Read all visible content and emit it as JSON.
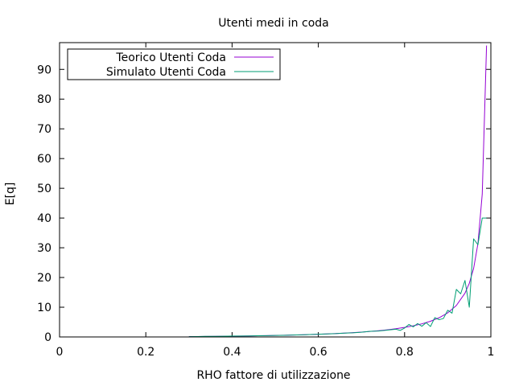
{
  "chart_data": {
    "type": "line",
    "title": "Utenti medi in coda",
    "xlabel": "RHO fattore di utilizzazione",
    "ylabel": "E[q]",
    "xlim": [
      0,
      1
    ],
    "ylim": [
      0,
      99
    ],
    "xticks": [
      0,
      0.2,
      0.4,
      0.6,
      0.8,
      1
    ],
    "yticks": [
      0,
      10,
      20,
      30,
      40,
      50,
      60,
      70,
      80,
      90
    ],
    "legend_position": "top-left",
    "grid": false,
    "series": [
      {
        "name": "Teorico Utenti Coda",
        "color": "#9400d3",
        "x": [
          0.3,
          0.32,
          0.34,
          0.36,
          0.38,
          0.4,
          0.42,
          0.44,
          0.46,
          0.48,
          0.5,
          0.52,
          0.54,
          0.56,
          0.58,
          0.6,
          0.62,
          0.64,
          0.66,
          0.68,
          0.7,
          0.72,
          0.74,
          0.76,
          0.78,
          0.8,
          0.82,
          0.84,
          0.86,
          0.88,
          0.9,
          0.92,
          0.94,
          0.95,
          0.96,
          0.97,
          0.98,
          0.99
        ],
        "y": [
          0.13,
          0.15,
          0.18,
          0.2,
          0.23,
          0.27,
          0.3,
          0.35,
          0.39,
          0.44,
          0.5,
          0.56,
          0.63,
          0.71,
          0.8,
          0.9,
          1.01,
          1.14,
          1.28,
          1.45,
          1.63,
          1.85,
          2.11,
          2.41,
          2.77,
          3.2,
          3.74,
          4.41,
          5.28,
          6.45,
          8.1,
          10.58,
          14.73,
          18.05,
          23.04,
          31.36,
          48.02,
          98.01
        ]
      },
      {
        "name": "Simulato Utenti Coda",
        "color": "#009e73",
        "x": [
          0.3,
          0.32,
          0.34,
          0.36,
          0.38,
          0.4,
          0.42,
          0.44,
          0.46,
          0.48,
          0.5,
          0.52,
          0.54,
          0.56,
          0.58,
          0.6,
          0.62,
          0.64,
          0.66,
          0.68,
          0.7,
          0.72,
          0.74,
          0.76,
          0.78,
          0.79,
          0.8,
          0.81,
          0.82,
          0.83,
          0.84,
          0.85,
          0.86,
          0.87,
          0.88,
          0.89,
          0.9,
          0.91,
          0.92,
          0.93,
          0.94,
          0.95,
          0.96,
          0.97,
          0.98,
          0.99
        ],
        "y": [
          0.1,
          0.15,
          0.2,
          0.2,
          0.25,
          0.3,
          0.3,
          0.35,
          0.4,
          0.45,
          0.5,
          0.55,
          0.65,
          0.7,
          0.8,
          0.9,
          1.0,
          1.1,
          1.3,
          1.4,
          1.6,
          1.9,
          2.0,
          2.3,
          2.6,
          2.2,
          3.0,
          4.2,
          3.4,
          4.5,
          3.6,
          4.8,
          3.5,
          6.5,
          5.8,
          6.2,
          9.0,
          8.0,
          16.0,
          14.5,
          19.0,
          10.0,
          33.0,
          31.0,
          40.0,
          40.0
        ]
      }
    ]
  }
}
